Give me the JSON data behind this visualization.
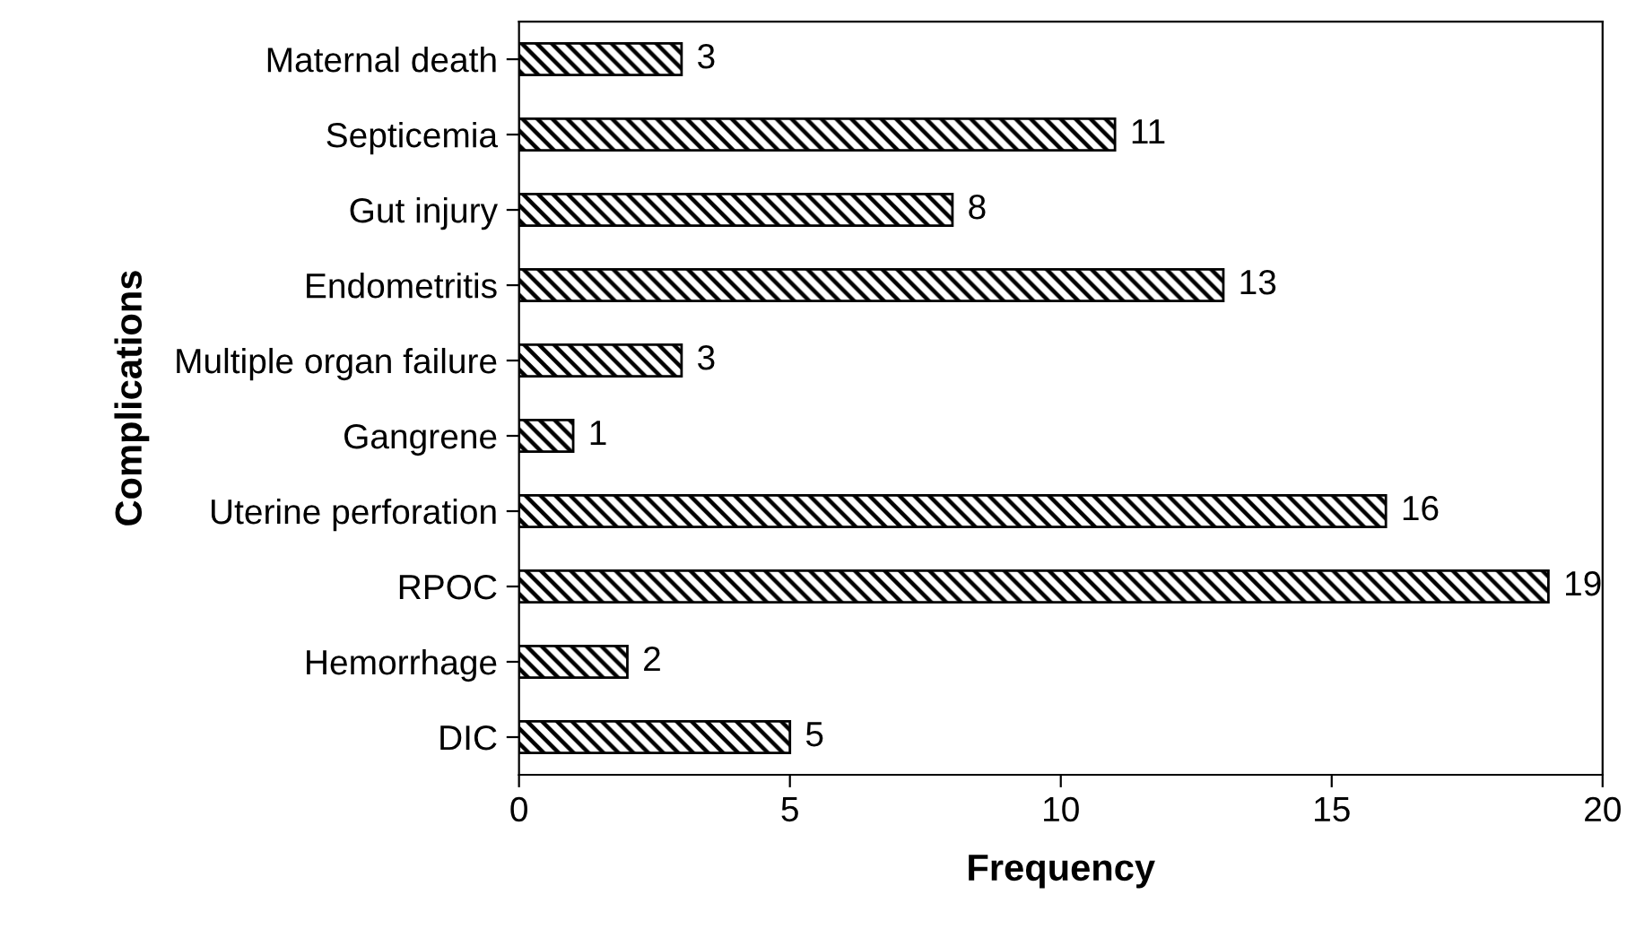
{
  "chart_data": {
    "type": "bar",
    "orientation": "horizontal",
    "xlabel": "Frequency",
    "ylabel": "Complications",
    "categories": [
      "Maternal death",
      "Septicemia",
      "Gut injury",
      "Endometritis",
      "Multiple organ failure",
      "Gangrene",
      "Uterine perforation",
      "RPOC",
      "Hemorrhage",
      "DIC"
    ],
    "values": [
      3,
      11,
      8,
      13,
      3,
      1,
      16,
      19,
      2,
      5
    ],
    "color": "#000000",
    "xlim": [
      0,
      20
    ],
    "xticks": [
      0,
      5,
      10,
      15,
      20
    ],
    "grid": false,
    "data_labels": true
  }
}
